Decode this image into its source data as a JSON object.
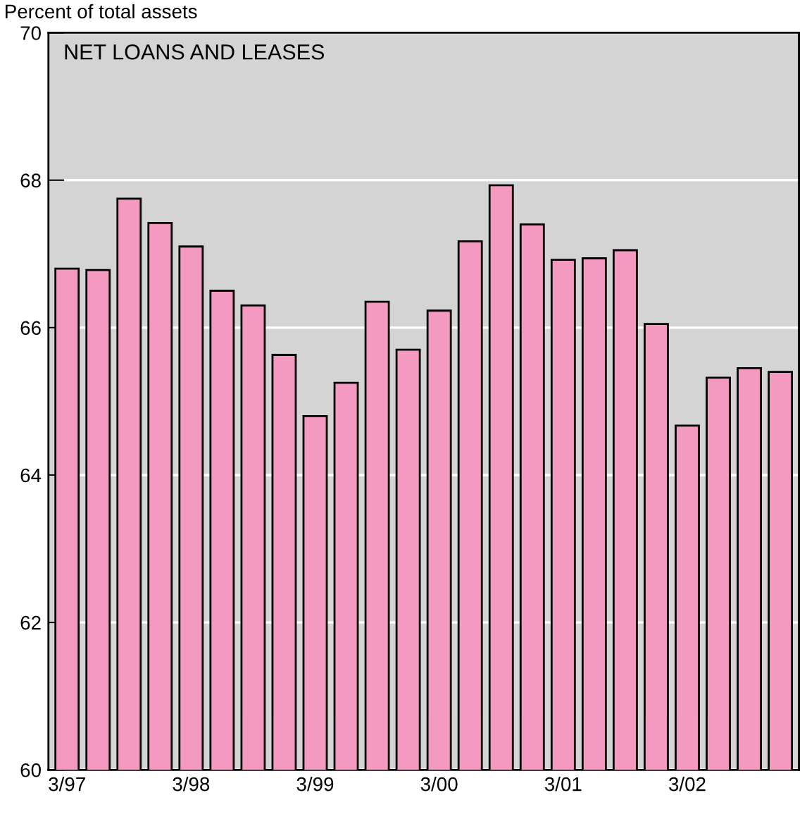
{
  "chart_data": {
    "type": "bar",
    "title": "NET LOANS AND LEASES",
    "ylabel": "Percent of total assets",
    "categories": [
      "3/97",
      null,
      null,
      null,
      "3/98",
      null,
      null,
      null,
      "3/99",
      null,
      null,
      null,
      "3/00",
      null,
      null,
      null,
      "3/01",
      null,
      null,
      null,
      "3/02",
      null,
      null,
      null
    ],
    "values": [
      66.8,
      66.78,
      67.75,
      67.42,
      67.1,
      66.5,
      66.3,
      65.63,
      64.8,
      65.25,
      66.35,
      65.7,
      66.23,
      67.17,
      67.93,
      67.4,
      66.92,
      66.94,
      67.05,
      66.05,
      64.67,
      65.32,
      65.45,
      65.4
    ],
    "color": "#f49ac1",
    "ylim": [
      60,
      70
    ],
    "yticks": [
      60,
      62,
      64,
      66,
      68,
      70
    ],
    "grid": "y"
  }
}
